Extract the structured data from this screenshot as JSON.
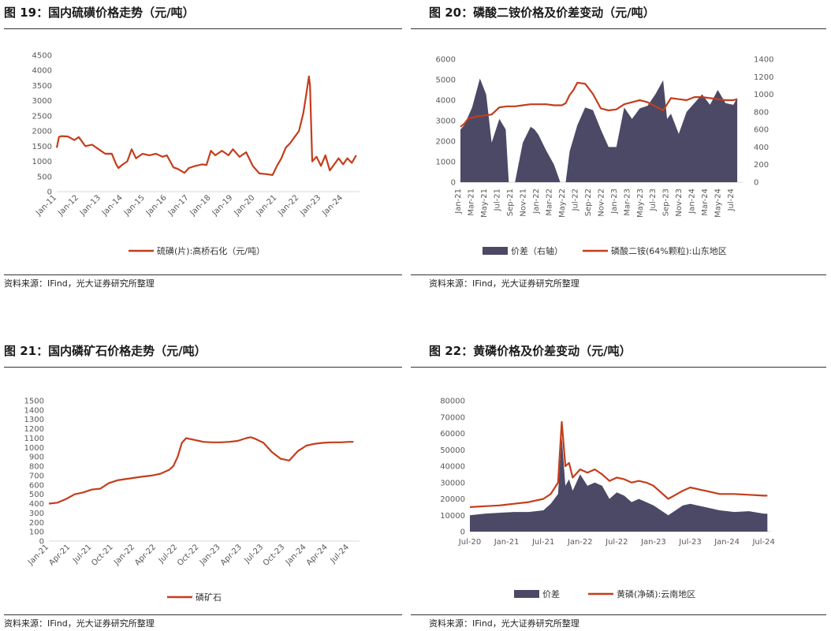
{
  "colors": {
    "line": "#c43d1c",
    "area": "#4b4966",
    "axis": "#d9d9d9",
    "tick": "#595959"
  },
  "panels": [
    {
      "title": "图 19：国内硫磺价格走势（元/吨）",
      "source": "资料来源：IFind，光大证券研究所整理",
      "chart_data": {
        "type": "line",
        "title": "",
        "x_ticks": [
          "Jan-11",
          "Jan-12",
          "Jan-13",
          "Jan-14",
          "Jan-15",
          "Jan-16",
          "Jan-17",
          "Jan-18",
          "Jan-19",
          "Jan-20",
          "Jan-21",
          "Jan-22",
          "Jan-23",
          "Jan-24"
        ],
        "ylim": [
          0,
          4500
        ],
        "y_ticks": [
          "0",
          "500",
          "1000",
          "1500",
          "2000",
          "2500",
          "3000",
          "3500",
          "4000",
          "4500"
        ],
        "series": [
          {
            "name": "硫磺(片):高桥石化（元/吨）",
            "color": "#c43d1c",
            "x": [
              2011.0,
              2011.1,
              2011.2,
              2011.5,
              2011.8,
              2012.0,
              2012.3,
              2012.6,
              2012.9,
              2013.2,
              2013.5,
              2013.7,
              2013.8,
              2014.0,
              2014.2,
              2014.4,
              2014.6,
              2014.9,
              2015.2,
              2015.5,
              2015.8,
              2016.0,
              2016.3,
              2016.5,
              2016.8,
              2017.0,
              2017.3,
              2017.6,
              2017.8,
              2018.0,
              2018.2,
              2018.5,
              2018.8,
              2019.0,
              2019.3,
              2019.6,
              2019.9,
              2020.2,
              2020.5,
              2020.8,
              2021.0,
              2021.2,
              2021.4,
              2021.6,
              2021.8,
              2022.0,
              2022.2,
              2022.35,
              2022.45,
              2022.5,
              2022.6,
              2022.8,
              2023.0,
              2023.2,
              2023.4,
              2023.6,
              2023.8,
              2024.0,
              2024.2,
              2024.4,
              2024.6
            ],
            "y": [
              1450,
              1800,
              1830,
              1820,
              1700,
              1800,
              1500,
              1550,
              1400,
              1250,
              1250,
              900,
              780,
              900,
              1000,
              1400,
              1100,
              1250,
              1200,
              1250,
              1150,
              1200,
              800,
              750,
              620,
              780,
              850,
              900,
              880,
              1350,
              1200,
              1350,
              1200,
              1400,
              1150,
              1300,
              850,
              600,
              580,
              550,
              850,
              1100,
              1450,
              1600,
              1800,
              2000,
              2600,
              3300,
              3800,
              3500,
              1000,
              1150,
              850,
              1200,
              700,
              900,
              1100,
              900,
              1100,
              950,
              1200
            ]
          }
        ]
      }
    },
    {
      "title": "图 20：磷酸二铵价格及价差变动（元/吨）",
      "source": "资料来源：IFind，光大证券研究所整理",
      "chart_data": {
        "type": "area",
        "title": "",
        "x_ticks": [
          "Jan-21",
          "Mar-21",
          "May-21",
          "Jul-21",
          "Sep-21",
          "Nov-21",
          "Jan-22",
          "Mar-22",
          "May-22",
          "Jul-22",
          "Sep-22",
          "Nov-22",
          "Jan-23",
          "Mar-23",
          "May-23",
          "Jul-23",
          "Sep-23",
          "Nov-23",
          "Jan-24",
          "Mar-24",
          "May-24",
          "Jul-24"
        ],
        "ylim": [
          0,
          6000
        ],
        "y_ticks": [
          "0",
          "1000",
          "2000",
          "3000",
          "4000",
          "5000",
          "6000"
        ],
        "y2lim": [
          0,
          1400
        ],
        "y2_ticks": [
          "0",
          "200",
          "400",
          "600",
          "800",
          "1000",
          "1200",
          "1400"
        ],
        "series": [
          {
            "name": "价差（右轴）",
            "axis": "right",
            "color": "#4b4966",
            "x": [
              2021.0,
              2021.05,
              2021.15,
              2021.25,
              2021.33,
              2021.4,
              2021.5,
              2021.58,
              2021.62,
              2021.7,
              2021.8,
              2021.9,
              2021.95,
              2022.0,
              2022.1,
              2022.2,
              2022.28,
              2022.35,
              2022.4,
              2022.5,
              2022.6,
              2022.7,
              2022.8,
              2022.9,
              2023.0,
              2023.1,
              2023.2,
              2023.3,
              2023.4,
              2023.5,
              2023.6,
              2023.65,
              2023.7,
              2023.8,
              2023.9,
              2024.0,
              2024.1,
              2024.2,
              2024.3,
              2024.4,
              2024.5,
              2024.55
            ],
            "y": [
              600,
              650,
              850,
              1180,
              1000,
              450,
              720,
              600,
              0,
              0,
              450,
              630,
              600,
              540,
              360,
              200,
              0,
              0,
              350,
              650,
              850,
              820,
              600,
              400,
              400,
              850,
              720,
              840,
              870,
              1000,
              1160,
              720,
              780,
              550,
              800,
              900,
              1000,
              880,
              1050,
              900,
              880,
              960
            ]
          },
          {
            "name": "磷酸二铵(64%颗粒):山东地区",
            "axis": "left",
            "color": "#c43d1c",
            "x": [
              2021.0,
              2021.05,
              2021.1,
              2021.2,
              2021.3,
              2021.4,
              2021.5,
              2021.6,
              2021.7,
              2021.8,
              2021.9,
              2022.0,
              2022.1,
              2022.2,
              2022.3,
              2022.35,
              2022.4,
              2022.45,
              2022.5,
              2022.6,
              2022.7,
              2022.8,
              2022.9,
              2023.0,
              2023.1,
              2023.2,
              2023.3,
              2023.4,
              2023.5,
              2023.6,
              2023.7,
              2023.8,
              2023.9,
              2024.0,
              2024.1,
              2024.2,
              2024.3,
              2024.4,
              2024.5,
              2024.55
            ],
            "y": [
              2700,
              2850,
              3100,
              3200,
              3250,
              3300,
              3650,
              3700,
              3700,
              3750,
              3800,
              3800,
              3800,
              3750,
              3750,
              3850,
              4250,
              4500,
              4850,
              4800,
              4300,
              3600,
              3500,
              3550,
              3800,
              3900,
              4000,
              3900,
              3700,
              3500,
              4100,
              4050,
              4000,
              4150,
              4150,
              4100,
              4050,
              4000,
              4000,
              4050
            ]
          }
        ]
      }
    },
    {
      "title": "图 21：国内磷矿石价格走势（元/吨）",
      "source": "资料来源：IFind，光大证券研究所整理",
      "chart_data": {
        "type": "line",
        "title": "",
        "x_ticks": [
          "Jan-21",
          "Apr-21",
          "Jul-21",
          "Oct-21",
          "Jan-22",
          "Apr-22",
          "Jul-22",
          "Oct-22",
          "Jan-23",
          "Apr-23",
          "Jul-23",
          "Oct-23",
          "Jan-24",
          "Apr-24",
          "Jul-24"
        ],
        "ylim": [
          0,
          1500
        ],
        "y_ticks": [
          "0",
          "50",
          "100",
          "150",
          "200",
          "250",
          "300",
          "350",
          "400",
          "450",
          "500",
          "550",
          "600",
          "650",
          "700",
          "750",
          "800",
          "850",
          "900",
          "950",
          "1000",
          "1050",
          "1100",
          "1150",
          "1200",
          "1250",
          "1300",
          "1350",
          "1400",
          "1450",
          "1500"
        ],
        "series": [
          {
            "name": "磷矿石",
            "color": "#c43d1c",
            "x": [
              2021.0,
              2021.1,
              2021.2,
              2021.3,
              2021.4,
              2021.5,
              2021.6,
              2021.7,
              2021.8,
              2021.95,
              2022.1,
              2022.2,
              2022.3,
              2022.4,
              2022.45,
              2022.5,
              2022.55,
              2022.6,
              2022.7,
              2022.8,
              2022.9,
              2023.0,
              2023.1,
              2023.2,
              2023.3,
              2023.35,
              2023.4,
              2023.5,
              2023.6,
              2023.7,
              2023.8,
              2023.9,
              2024.0,
              2024.1,
              2024.2,
              2024.3,
              2024.4,
              2024.5,
              2024.55
            ],
            "y": [
              400,
              410,
              450,
              500,
              520,
              550,
              560,
              620,
              650,
              670,
              690,
              700,
              720,
              760,
              800,
              900,
              1050,
              1100,
              1080,
              1060,
              1055,
              1055,
              1060,
              1070,
              1100,
              1110,
              1095,
              1050,
              950,
              880,
              860,
              960,
              1020,
              1040,
              1050,
              1055,
              1055,
              1060,
              1060
            ]
          }
        ]
      }
    },
    {
      "title": "图 22：黄磷价格及价差变动（元/吨）",
      "source": "资料来源：IFind，光大证券研究所整理",
      "chart_data": {
        "type": "area",
        "title": "",
        "x_ticks": [
          "Jul-20",
          "Jan-21",
          "Jul-21",
          "Jan-22",
          "Jul-22",
          "Jan-23",
          "Jul-23",
          "Jan-24",
          "Jul-24"
        ],
        "ylim": [
          0,
          80000
        ],
        "y_ticks": [
          "0",
          "10000",
          "20000",
          "30000",
          "40000",
          "50000",
          "60000",
          "70000",
          "80000"
        ],
        "series": [
          {
            "name": "价差",
            "color": "#4b4966",
            "x": [
              2020.5,
              2020.7,
              2020.9,
              2021.1,
              2021.3,
              2021.5,
              2021.6,
              2021.7,
              2021.75,
              2021.8,
              2021.85,
              2021.9,
              2022.0,
              2022.1,
              2022.2,
              2022.3,
              2022.4,
              2022.5,
              2022.6,
              2022.7,
              2022.8,
              2022.9,
              2023.0,
              2023.2,
              2023.4,
              2023.5,
              2023.7,
              2023.9,
              2024.1,
              2024.3,
              2024.5,
              2024.55
            ],
            "y": [
              10000,
              11000,
              11500,
              12000,
              12000,
              13000,
              17000,
              23000,
              58000,
              28000,
              32000,
              25000,
              35000,
              28000,
              30000,
              28000,
              20000,
              24000,
              22000,
              18000,
              20000,
              18000,
              16000,
              10000,
              16000,
              17000,
              15000,
              13000,
              12000,
              12500,
              11000,
              11000
            ]
          },
          {
            "name": "黄磷(净磷):云南地区",
            "color": "#c43d1c",
            "x": [
              2020.5,
              2020.7,
              2020.9,
              2021.1,
              2021.3,
              2021.5,
              2021.6,
              2021.7,
              2021.75,
              2021.8,
              2021.85,
              2021.9,
              2022.0,
              2022.1,
              2022.2,
              2022.3,
              2022.4,
              2022.5,
              2022.6,
              2022.7,
              2022.8,
              2022.9,
              2023.0,
              2023.2,
              2023.4,
              2023.5,
              2023.7,
              2023.9,
              2024.1,
              2024.3,
              2024.5,
              2024.55
            ],
            "y": [
              15000,
              15500,
              16000,
              17000,
              18000,
              20000,
              23000,
              30000,
              67000,
              40000,
              42000,
              33000,
              38000,
              36000,
              38000,
              35000,
              31000,
              33000,
              32000,
              30000,
              31000,
              30000,
              28000,
              20000,
              25000,
              27000,
              25000,
              23000,
              23000,
              22500,
              22000,
              22000
            ]
          }
        ]
      }
    }
  ]
}
